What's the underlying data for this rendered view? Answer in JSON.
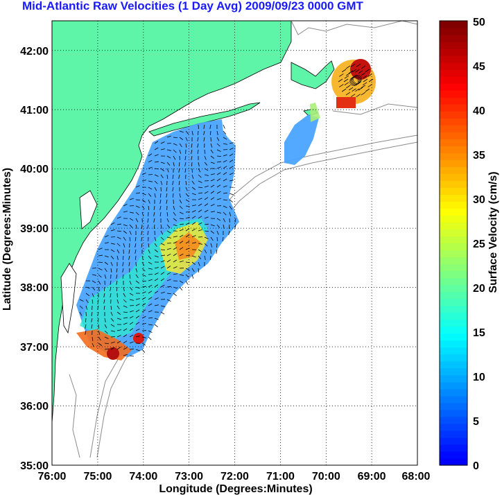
{
  "title": "Mid-Atlantic Raw Velocities (1 Day Avg) 2009/09/23 0000 GMT",
  "chart_data": {
    "type": "heatmap",
    "xlabel": "Longitude (Degrees:Minutes)",
    "ylabel": "Latitude (Degrees:Minutes)",
    "x_ticks": [
      "76:00",
      "75:00",
      "74:00",
      "73:00",
      "72:00",
      "71:00",
      "70:00",
      "69:00",
      "68:00"
    ],
    "y_ticks": [
      "35:00",
      "36:00",
      "37:00",
      "38:00",
      "39:00",
      "40:00",
      "41:00",
      "42:00"
    ],
    "xlim": [
      -76,
      -68
    ],
    "ylim": [
      35,
      42.5
    ],
    "grid": true,
    "colorbar": {
      "label": "Surface Velocity (cm/s)",
      "range": [
        0,
        50
      ],
      "ticks": [
        "0",
        "5",
        "10",
        "15",
        "20",
        "25",
        "30",
        "35",
        "40",
        "45",
        "50"
      ],
      "colormap": "jet"
    },
    "land_color": "#5ef5a8"
  }
}
